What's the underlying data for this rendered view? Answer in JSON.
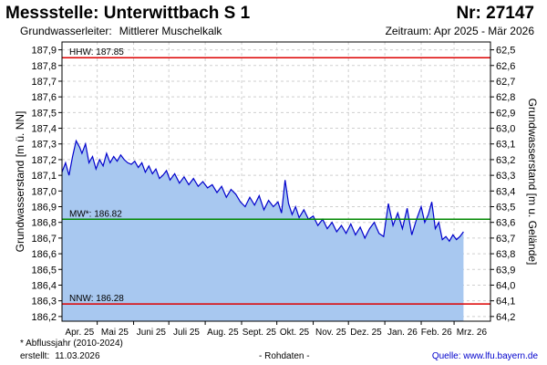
{
  "header": {
    "title": "Messstelle: Unterwittbach S 1",
    "number": "Nr: 27147",
    "aquifer_label": "Grundwasserleiter:",
    "aquifer_value": "Mittlerer Muschelkalk",
    "period": "Zeitraum: Apr 2025 - Mär 2026"
  },
  "footer": {
    "footnote": "* Abflussjahr (2010-2024)",
    "created_label": "erstellt:",
    "created_value": "11.03.2026",
    "rawdata": "- Rohdaten -",
    "source": "Quelle: www.lfu.bayern.de"
  },
  "chart_data": {
    "type": "area",
    "title": "",
    "ylabel": "Grundwasserstand [m ü. NN]",
    "y2label": "Grundwasserstand [m u. Gelände]",
    "ylim": [
      186.17,
      187.95
    ],
    "y2lim": [
      64.23,
      62.45
    ],
    "yticks": [
      187.9,
      187.8,
      187.7,
      187.6,
      187.5,
      187.4,
      187.3,
      187.2,
      187.1,
      187.0,
      186.9,
      186.8,
      186.7,
      186.6,
      186.5,
      186.4,
      186.3,
      186.2
    ],
    "ytick_labels": [
      "187,9",
      "187,8",
      "187,7",
      "187,6",
      "187,5",
      "187,4",
      "187,3",
      "187,2",
      "187,1",
      "187,0",
      "186,9",
      "186,8",
      "186,7",
      "186,6",
      "186,5",
      "186,4",
      "186,3",
      "186,2"
    ],
    "y2ticks": [
      62.5,
      62.6,
      62.7,
      62.8,
      62.9,
      63.0,
      63.1,
      63.2,
      63.3,
      63.4,
      63.5,
      63.6,
      63.7,
      63.8,
      63.9,
      64.0,
      64.1,
      64.2
    ],
    "y2tick_labels": [
      "62,5",
      "62,6",
      "62,7",
      "62,8",
      "62,9",
      "63,0",
      "63,1",
      "63,2",
      "63,3",
      "63,4",
      "63,5",
      "63,6",
      "63,7",
      "63,8",
      "63,9",
      "64,0",
      "64,1",
      "64,2"
    ],
    "xlim": [
      "2025-04-01",
      "2026-04-01"
    ],
    "xtick_labels": [
      {
        "label": "Apr. 25",
        "date": "2025-04-16"
      },
      {
        "label": "Mai 25",
        "date": "2025-05-16"
      },
      {
        "label": "Juni 25",
        "date": "2025-06-16"
      },
      {
        "label": "Juli 25",
        "date": "2025-07-16"
      },
      {
        "label": "Aug. 25",
        "date": "2025-08-16"
      },
      {
        "label": "Sept. 25",
        "date": "2025-09-16"
      },
      {
        "label": "Okt. 25",
        "date": "2025-10-16"
      },
      {
        "label": "Nov. 25",
        "date": "2025-11-16"
      },
      {
        "label": "Dez. 25",
        "date": "2025-12-16"
      },
      {
        "label": "Jan. 26",
        "date": "2026-01-16"
      },
      {
        "label": "Feb. 26",
        "date": "2026-02-14"
      },
      {
        "label": "Mrz. 26",
        "date": "2026-03-16"
      }
    ],
    "grid": true,
    "series": [
      {
        "name": "",
        "color": "#0000cc",
        "fill": "#a8c8f0",
        "x": [
          "2025-04-01",
          "2025-04-04",
          "2025-04-07",
          "2025-04-10",
          "2025-04-13",
          "2025-04-16",
          "2025-04-18",
          "2025-04-21",
          "2025-04-24",
          "2025-04-27",
          "2025-04-30",
          "2025-05-03",
          "2025-05-06",
          "2025-05-09",
          "2025-05-12",
          "2025-05-15",
          "2025-05-18",
          "2025-05-21",
          "2025-05-24",
          "2025-05-27",
          "2025-05-30",
          "2025-06-02",
          "2025-06-05",
          "2025-06-08",
          "2025-06-11",
          "2025-06-14",
          "2025-06-17",
          "2025-06-20",
          "2025-06-23",
          "2025-06-26",
          "2025-06-29",
          "2025-07-02",
          "2025-07-06",
          "2025-07-10",
          "2025-07-14",
          "2025-07-18",
          "2025-07-22",
          "2025-07-26",
          "2025-07-30",
          "2025-08-03",
          "2025-08-07",
          "2025-08-11",
          "2025-08-15",
          "2025-08-19",
          "2025-08-23",
          "2025-08-27",
          "2025-08-31",
          "2025-09-04",
          "2025-09-08",
          "2025-09-12",
          "2025-09-16",
          "2025-09-20",
          "2025-09-24",
          "2025-09-28",
          "2025-10-02",
          "2025-10-05",
          "2025-10-08",
          "2025-10-11",
          "2025-10-14",
          "2025-10-17",
          "2025-10-20",
          "2025-10-24",
          "2025-10-28",
          "2025-11-01",
          "2025-11-05",
          "2025-11-09",
          "2025-11-13",
          "2025-11-17",
          "2025-11-21",
          "2025-11-25",
          "2025-11-29",
          "2025-12-03",
          "2025-12-07",
          "2025-12-11",
          "2025-12-15",
          "2025-12-19",
          "2025-12-23",
          "2025-12-27",
          "2025-12-31",
          "2026-01-04",
          "2026-01-08",
          "2026-01-12",
          "2026-01-16",
          "2026-01-20",
          "2026-01-24",
          "2026-01-28",
          "2026-02-01",
          "2026-02-04",
          "2026-02-07",
          "2026-02-10",
          "2026-02-13",
          "2026-02-16",
          "2026-02-19",
          "2026-02-22",
          "2026-02-25",
          "2026-02-28",
          "2026-03-03",
          "2026-03-06",
          "2026-03-09"
        ],
        "values": [
          187.12,
          187.18,
          187.1,
          187.22,
          187.32,
          187.28,
          187.24,
          187.3,
          187.18,
          187.22,
          187.14,
          187.2,
          187.16,
          187.24,
          187.18,
          187.22,
          187.19,
          187.23,
          187.2,
          187.18,
          187.17,
          187.19,
          187.15,
          187.18,
          187.12,
          187.16,
          187.11,
          187.14,
          187.08,
          187.1,
          187.13,
          187.07,
          187.11,
          187.05,
          187.09,
          187.04,
          187.08,
          187.03,
          187.06,
          187.02,
          187.04,
          186.99,
          187.03,
          186.96,
          187.01,
          186.98,
          186.93,
          186.9,
          186.96,
          186.91,
          186.97,
          186.88,
          186.94,
          186.9,
          186.93,
          186.86,
          187.07,
          186.92,
          186.85,
          186.9,
          186.83,
          186.88,
          186.82,
          186.84,
          186.78,
          186.82,
          186.76,
          186.8,
          186.74,
          186.78,
          186.73,
          186.79,
          186.72,
          186.77,
          186.7,
          186.76,
          186.8,
          186.73,
          186.71,
          186.92,
          186.78,
          186.86,
          186.76,
          186.89,
          186.72,
          186.82,
          186.9,
          186.8,
          186.85,
          186.93,
          186.76,
          186.8,
          186.69,
          186.71,
          186.68,
          186.72,
          186.69,
          186.71,
          186.74
        ]
      }
    ],
    "reference_lines": [
      {
        "name": "HHW",
        "label": "HHW: 187.85",
        "value": 187.85,
        "color": "#dd0000"
      },
      {
        "name": "MW",
        "label": "MW*: 186.82",
        "value": 186.82,
        "color": "#008800"
      },
      {
        "name": "NNW",
        "label": "NNW: 186.28",
        "value": 186.28,
        "color": "#dd0000"
      }
    ]
  }
}
